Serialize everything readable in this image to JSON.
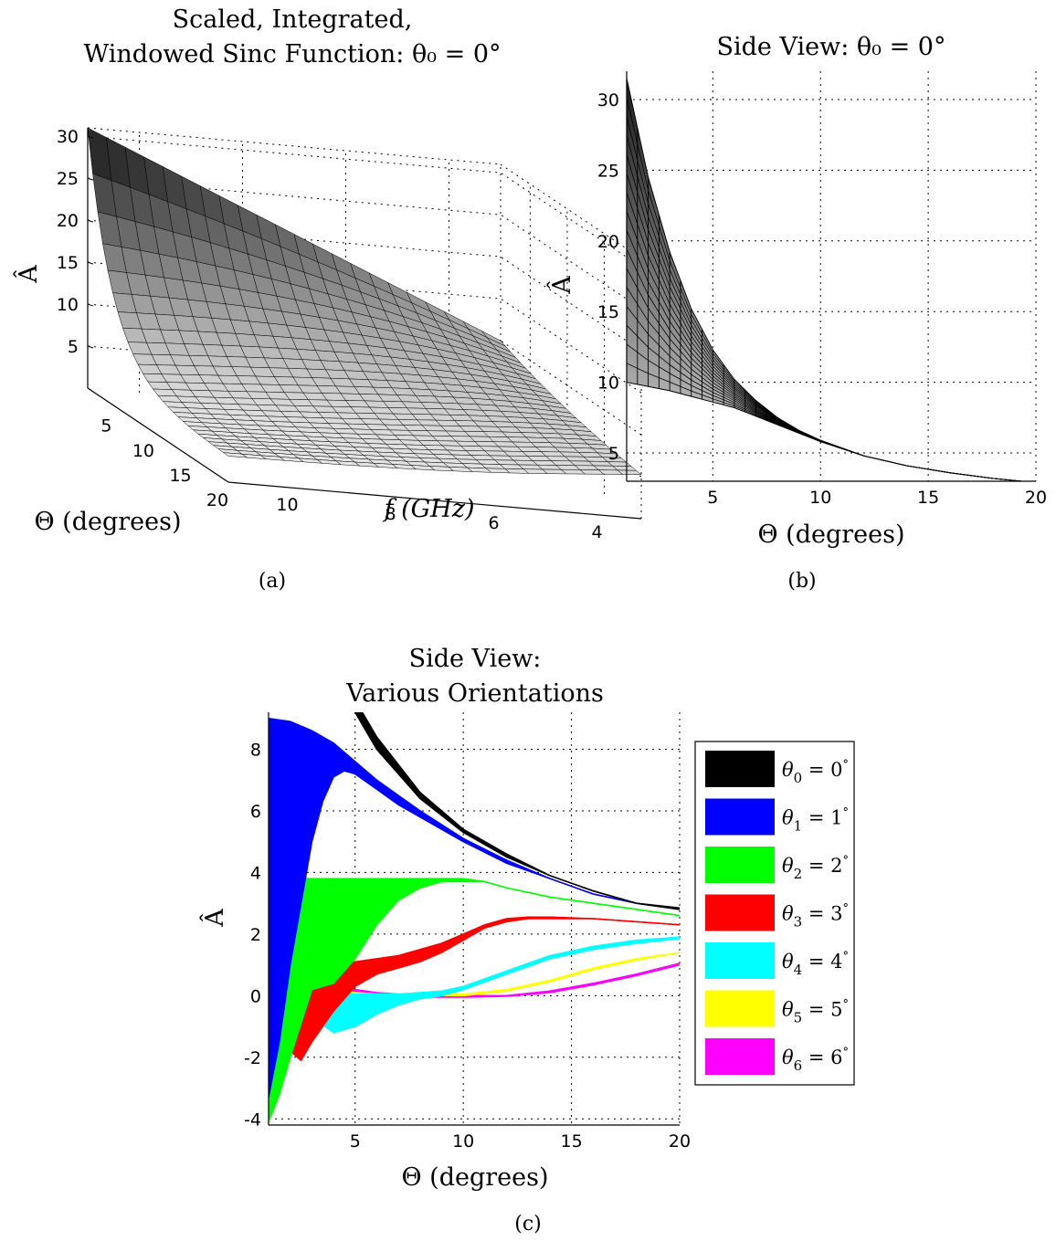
{
  "chart_data": [
    {
      "id": "a",
      "type": "surface3d",
      "title_lines": [
        "Scaled, Integrated,",
        "Windowed Sinc Function: θ₀ = 0°"
      ],
      "xlabel": "Θ (degrees)",
      "ylabel": "f (GHz)",
      "zlabel": "Â",
      "x_ticks": [
        "5",
        "10",
        "15",
        "20"
      ],
      "y_ticks": [
        "10",
        "8",
        "6",
        "4"
      ],
      "z_ticks": [
        "30",
        "25",
        "20",
        "15",
        "10",
        "5"
      ],
      "x_range": [
        1,
        20
      ],
      "f_range": [
        3,
        11
      ],
      "z_range": [
        0,
        31
      ],
      "corner_values": {
        "theta1_f11": 31,
        "theta1_f3": 10,
        "theta20": 3
      },
      "caption": "(a)"
    },
    {
      "id": "b",
      "type": "area",
      "title": "Side View: θ₀ = 0°",
      "xlabel": "Θ (degrees)",
      "ylabel": "Â",
      "x_ticks": [
        "5",
        "10",
        "15",
        "20"
      ],
      "y_ticks": [
        "30",
        "25",
        "20",
        "15",
        "10",
        "5"
      ],
      "xlim": [
        1,
        20
      ],
      "ylim": [
        3,
        32
      ],
      "upper": {
        "x": [
          1,
          2,
          3,
          4,
          5,
          6,
          7,
          8,
          9,
          10,
          12,
          14,
          16,
          18,
          20
        ],
        "y": [
          31.5,
          24.5,
          19.2,
          15.2,
          12.3,
          10.2,
          8.7,
          7.5,
          6.6,
          5.9,
          4.8,
          4.1,
          3.6,
          3.2,
          2.9
        ]
      },
      "lower": {
        "x": [
          1,
          2,
          3,
          4,
          5,
          6,
          7,
          8,
          9,
          10,
          12,
          14,
          16,
          18,
          20
        ],
        "y": [
          10,
          9.7,
          9.4,
          9.0,
          8.6,
          8.2,
          7.6,
          7.0,
          6.4,
          5.8,
          4.8,
          4.1,
          3.6,
          3.2,
          2.9
        ]
      },
      "caption": "(b)"
    },
    {
      "id": "c",
      "type": "area",
      "title_lines": [
        "Side View:",
        "Various Orientations"
      ],
      "xlabel": "Θ (degrees)",
      "ylabel": "Â",
      "x_ticks": [
        "5",
        "10",
        "15",
        "20"
      ],
      "y_ticks": [
        "8",
        "6",
        "4",
        "2",
        "0",
        "-2",
        "-4"
      ],
      "xlim": [
        1,
        20
      ],
      "ylim": [
        -4.2,
        9.2
      ],
      "legend_position": "right",
      "series": [
        {
          "name": "θ0 = 0°",
          "sub": "0",
          "color": "#000000",
          "upper": {
            "x": [
              3,
              5,
              6,
              7,
              8,
              10,
              12,
              14,
              16,
              18,
              20
            ],
            "y": [
              12,
              9.6,
              8.4,
              7.5,
              6.6,
              5.4,
              4.6,
              3.9,
              3.4,
              3.0,
              2.85
            ]
          },
          "lower": {
            "x": [
              3,
              5,
              6,
              7,
              8,
              10,
              12,
              14,
              16,
              18,
              20
            ],
            "y": [
              12,
              9.2,
              8.0,
              7.2,
              6.4,
              5.3,
              4.5,
              3.9,
              3.4,
              3.0,
              2.8
            ]
          }
        },
        {
          "name": "θ0 = 1°",
          "sub": "1",
          "color": "#0000ff",
          "upper": {
            "x": [
              1,
              2,
              3,
              4,
              5,
              6,
              7,
              8,
              10,
              12,
              14,
              16,
              18,
              20
            ],
            "y": [
              9.0,
              8.9,
              8.6,
              8.2,
              7.6,
              7.0,
              6.5,
              6.0,
              5.1,
              4.4,
              3.8,
              3.3,
              3.0,
              2.8
            ]
          },
          "lower": {
            "x": [
              1,
              1.5,
              2,
              3,
              3.5,
              4,
              4.5,
              5,
              6,
              7,
              8,
              10,
              12,
              14,
              16,
              18,
              20
            ],
            "y": [
              -3.3,
              -1.5,
              1.0,
              5.0,
              6.3,
              7.1,
              7.3,
              7.2,
              6.7,
              6.2,
              5.8,
              5.0,
              4.3,
              3.8,
              3.3,
              3.0,
              2.8
            ]
          }
        },
        {
          "name": "θ0 = 2°",
          "sub": "2",
          "color": "#00ff00",
          "upper": {
            "x": [
              1,
              1.5,
              2,
              2.5,
              3,
              4,
              5,
              6,
              7,
              8,
              9,
              10,
              11,
              12,
              14,
              16,
              18,
              20
            ],
            "y": [
              3.3,
              3.6,
              3.75,
              3.8,
              3.8,
              3.8,
              3.8,
              3.8,
              3.8,
              3.8,
              3.8,
              3.8,
              3.7,
              3.5,
              3.2,
              3.0,
              2.8,
              2.6
            ]
          },
          "lower": {
            "x": [
              1,
              1.5,
              2,
              3,
              4,
              5,
              6,
              7,
              8,
              9,
              10,
              11,
              12,
              14,
              16,
              18,
              20
            ],
            "y": [
              -4.1,
              -3.2,
              -2.0,
              0.2,
              0.4,
              1.2,
              2.3,
              3.1,
              3.5,
              3.7,
              3.7,
              3.7,
              3.5,
              3.2,
              3.0,
              2.8,
              2.6
            ]
          }
        },
        {
          "name": "θ0 = 3°",
          "sub": "3",
          "color": "#ff0000",
          "upper": {
            "x": [
              1,
              1.5,
              2,
              3,
              4,
              5,
              6,
              7,
              8,
              9,
              10,
              11,
              12,
              13,
              14,
              16,
              18,
              20
            ],
            "y": [
              -0.7,
              -0.3,
              0.2,
              0.8,
              1.0,
              1.1,
              1.2,
              1.3,
              1.5,
              1.7,
              2.0,
              2.3,
              2.5,
              2.55,
              2.55,
              2.5,
              2.4,
              2.3
            ]
          },
          "lower": {
            "x": [
              1,
              2,
              2.5,
              3,
              4,
              5,
              6,
              7,
              8,
              9,
              10,
              11,
              12,
              13,
              14,
              16,
              18,
              20
            ],
            "y": [
              -2.2,
              -1.8,
              -2.1,
              -1.5,
              -0.5,
              0.3,
              0.7,
              0.9,
              1.1,
              1.4,
              1.8,
              2.2,
              2.4,
              2.5,
              2.5,
              2.5,
              2.4,
              2.3
            ]
          }
        },
        {
          "name": "θ0 = 4°",
          "sub": "4",
          "color": "#00ffff",
          "upper": {
            "x": [
              1,
              2,
              3,
              3.5,
              4,
              5,
              6,
              7,
              8,
              9,
              10,
              12,
              14,
              16,
              18,
              20
            ],
            "y": [
              1.9,
              1.2,
              0.5,
              0.2,
              0.1,
              0.05,
              0.05,
              0.05,
              0.1,
              0.15,
              0.3,
              0.8,
              1.3,
              1.6,
              1.8,
              1.9
            ]
          },
          "lower": {
            "x": [
              1,
              2,
              3,
              4,
              5,
              6,
              7,
              8,
              9,
              10,
              12,
              14,
              16,
              18,
              20
            ],
            "y": [
              0.0,
              -0.2,
              -0.7,
              -1.2,
              -1.0,
              -0.6,
              -0.3,
              -0.1,
              0.0,
              0.2,
              0.7,
              1.2,
              1.5,
              1.7,
              1.85
            ]
          }
        },
        {
          "name": "θ0 = 5°",
          "sub": "5",
          "color": "#ffff00",
          "upper": {
            "x": [
              1,
              2,
              3,
              4,
              5,
              6,
              7,
              8,
              9,
              10,
              12,
              14,
              16,
              18,
              20
            ],
            "y": [
              1.6,
              1.3,
              0.7,
              0.3,
              0.1,
              0.05,
              0.05,
              0.05,
              0.05,
              0.05,
              0.2,
              0.5,
              0.9,
              1.2,
              1.4
            ]
          },
          "lower": {
            "x": [
              1,
              2,
              3,
              4,
              5,
              6,
              7,
              8,
              9,
              10,
              12,
              14,
              16,
              18,
              20
            ],
            "y": [
              -1.2,
              -0.6,
              -0.2,
              -0.3,
              -0.4,
              -0.3,
              -0.2,
              -0.1,
              0.0,
              0.0,
              0.15,
              0.45,
              0.85,
              1.15,
              1.4
            ]
          }
        },
        {
          "name": "θ0 = 6°",
          "sub": "6",
          "color": "#ff00ff",
          "upper": {
            "x": [
              1,
              2,
              3,
              4,
              5,
              6,
              7,
              8,
              9,
              10,
              12,
              14,
              16,
              18,
              20
            ],
            "y": [
              1.4,
              1.2,
              0.8,
              0.4,
              0.2,
              0.1,
              0.05,
              0.0,
              0.0,
              0.0,
              0.0,
              0.15,
              0.4,
              0.7,
              1.05
            ]
          },
          "lower": {
            "x": [
              1,
              2,
              3,
              4,
              5,
              6,
              7,
              8,
              9,
              10,
              12,
              14,
              16,
              18,
              20
            ],
            "y": [
              -0.3,
              0.0,
              0.2,
              0.15,
              0.05,
              0.0,
              0.0,
              -0.05,
              -0.05,
              -0.05,
              -0.02,
              0.1,
              0.35,
              0.65,
              1.0
            ]
          }
        }
      ],
      "caption": "(c)"
    }
  ]
}
